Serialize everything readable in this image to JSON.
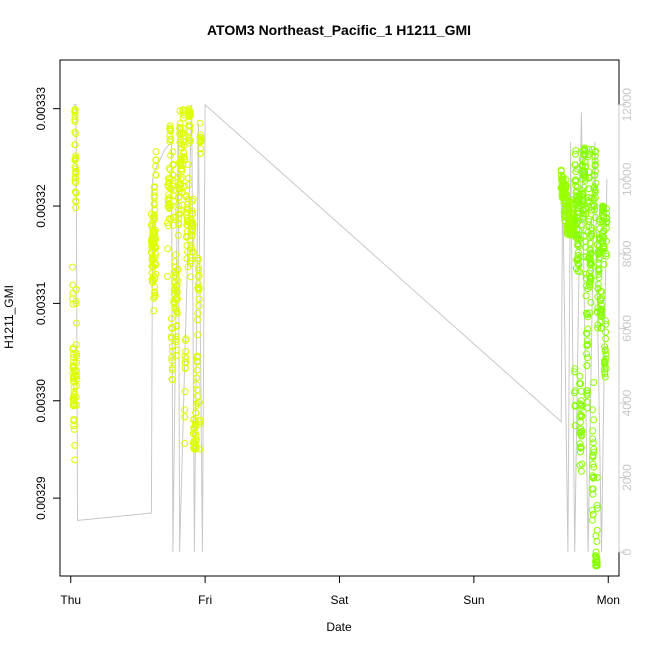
{
  "chart_data": {
    "type": "scatter",
    "title": "ATOM3 Northeast_Pacific_1 H1211_GMI",
    "xlabel": "Date",
    "ylabel": "H1211_GMI",
    "x_ticks": [
      "Thu",
      "Fri",
      "Sat",
      "Sun",
      "Mon"
    ],
    "x_range_days": [
      -0.08,
      4.08
    ],
    "ylim": [
      0.003282,
      0.003335
    ],
    "y_ticks": [
      "0.00329",
      "0.00330",
      "0.00331",
      "0.00332",
      "0.00333"
    ],
    "y_tick_values": [
      0.00329,
      0.0033,
      0.00331,
      0.00332,
      0.00333
    ],
    "y2_range": [
      -640,
      13200
    ],
    "y2_ticks": [
      "0",
      "2000",
      "4000",
      "6000",
      "8000",
      "10000",
      "12000"
    ],
    "y2_tick_values": [
      0,
      2000,
      4000,
      6000,
      8000,
      10000,
      12000
    ],
    "colors": {
      "points_early": "#ddff00",
      "points_late": "#88ff00",
      "altitude_line": "#c8c8c8",
      "right_axis": "#c8c8c8",
      "frame": "#000000"
    },
    "series": [
      {
        "marker": "open-circle",
        "segments": [
          {
            "x0": 0.015,
            "x1": 0.045,
            "y_low": 0.003293,
            "y_high": 0.00333,
            "count": 90,
            "color": "#ddff00"
          },
          {
            "x0": 0.6,
            "x1": 0.635,
            "y_low": 0.003309,
            "y_high": 0.00333,
            "count": 90,
            "color": "#ddff00"
          },
          {
            "x0": 0.72,
            "x1": 0.97,
            "y_low": 0.003295,
            "y_high": 0.00333,
            "count": 330,
            "color": "#ddff00"
          },
          {
            "x0": 3.65,
            "x1": 3.75,
            "y_low": 0.003317,
            "y_high": 0.003328,
            "count": 160,
            "color": "#99ff00"
          },
          {
            "x0": 3.75,
            "x1": 3.92,
            "y_low": 0.003283,
            "y_high": 0.003326,
            "count": 300,
            "color": "#88ff00"
          },
          {
            "x0": 3.92,
            "x1": 3.99,
            "y_low": 0.003297,
            "y_high": 0.00332,
            "count": 110,
            "color": "#88ff00"
          }
        ]
      },
      {
        "name": "",
        "axis": "right",
        "style": "line",
        "x": [
          0.02,
          0.04,
          0.05,
          0.6,
          0.61,
          0.62,
          0.7,
          0.75,
          0.76,
          0.8,
          0.81,
          0.9,
          0.92,
          0.95,
          0.98,
          1.0,
          3.65,
          3.66,
          3.7,
          3.72,
          3.75,
          3.8,
          3.85,
          3.9,
          3.95,
          3.99
        ],
        "y": [
          12000,
          12000,
          850,
          1050,
          10000,
          10200,
          10800,
          11000,
          0,
          11500,
          0,
          12000,
          0,
          11500,
          0,
          12000,
          3500,
          10000,
          0,
          11000,
          0,
          11800,
          0,
          11000,
          0,
          10000
        ]
      }
    ]
  }
}
